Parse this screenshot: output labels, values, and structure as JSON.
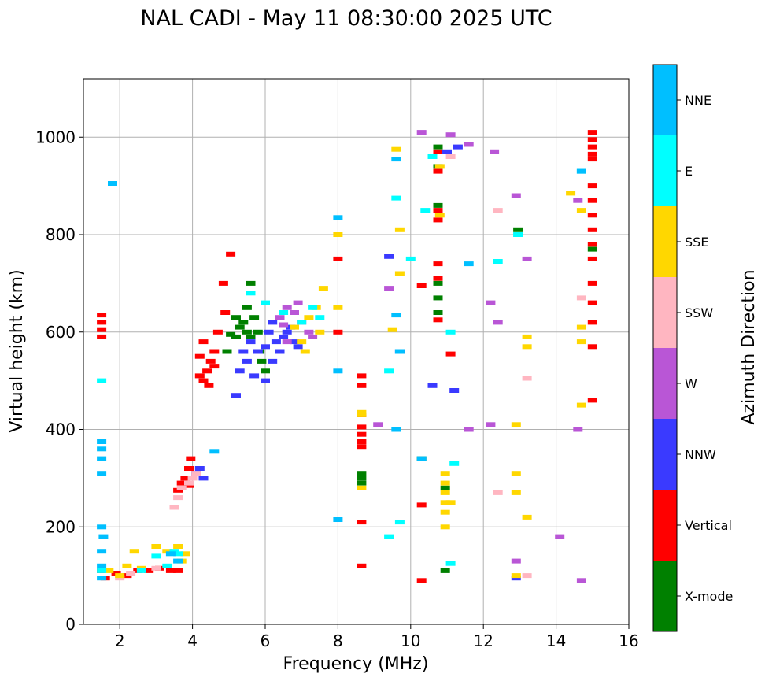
{
  "chart_data": {
    "type": "scatter",
    "title": "NAL CADI - May 11 08:30:00 2025 UTC",
    "xlabel": "Frequency (MHz)",
    "ylabel": "Virtual height (km)",
    "xlim": [
      1,
      16
    ],
    "ylim": [
      0,
      1120
    ],
    "xticks": [
      2,
      4,
      6,
      8,
      10,
      12,
      14,
      16
    ],
    "yticks": [
      0,
      200,
      400,
      600,
      800,
      1000
    ],
    "grid": true,
    "colorbar": {
      "label": "Azimuth Direction",
      "categories": [
        {
          "name": "X-mode",
          "color": "#008000"
        },
        {
          "name": "Vertical",
          "color": "#ff0000"
        },
        {
          "name": "NNW",
          "color": "#3a3aff"
        },
        {
          "name": "W",
          "color": "#b956d6"
        },
        {
          "name": "SSW",
          "color": "#ffb6c1"
        },
        {
          "name": "SSE",
          "color": "#ffd700"
        },
        {
          "name": "E",
          "color": "#00ffff"
        },
        {
          "name": "NNE",
          "color": "#00bfff"
        }
      ]
    },
    "series": [
      {
        "name": "X-mode",
        "points": [
          [
            5.05,
            595
          ],
          [
            5.2,
            590
          ],
          [
            5.3,
            610
          ],
          [
            5.4,
            620
          ],
          [
            5.5,
            600
          ],
          [
            5.6,
            590
          ],
          [
            5.7,
            630
          ],
          [
            5.5,
            650
          ],
          [
            5.6,
            700
          ],
          [
            5.8,
            600
          ],
          [
            5.85,
            560
          ],
          [
            6.0,
            520
          ],
          [
            5.9,
            540
          ],
          [
            5.2,
            630
          ],
          [
            4.95,
            560
          ],
          [
            10.75,
            980
          ],
          [
            10.75,
            940
          ],
          [
            10.75,
            860
          ],
          [
            10.75,
            700
          ],
          [
            10.75,
            670
          ],
          [
            10.75,
            640
          ],
          [
            8.65,
            310
          ],
          [
            8.65,
            300
          ],
          [
            8.65,
            290
          ],
          [
            10.3,
            340
          ],
          [
            10.95,
            280
          ],
          [
            10.95,
            110
          ],
          [
            15.0,
            770
          ],
          [
            12.95,
            810
          ]
        ]
      },
      {
        "name": "Vertical",
        "points": [
          [
            1.5,
            635
          ],
          [
            1.5,
            620
          ],
          [
            1.5,
            605
          ],
          [
            1.5,
            590
          ],
          [
            1.5,
            110
          ],
          [
            1.6,
            95
          ],
          [
            1.9,
            105
          ],
          [
            2.2,
            100
          ],
          [
            2.5,
            110
          ],
          [
            2.8,
            110
          ],
          [
            3.1,
            115
          ],
          [
            3.4,
            110
          ],
          [
            3.6,
            110
          ],
          [
            3.6,
            275
          ],
          [
            3.7,
            290
          ],
          [
            3.8,
            300
          ],
          [
            3.9,
            320
          ],
          [
            3.95,
            340
          ],
          [
            3.9,
            285
          ],
          [
            4.3,
            500
          ],
          [
            4.4,
            520
          ],
          [
            4.5,
            540
          ],
          [
            4.2,
            550
          ],
          [
            4.6,
            560
          ],
          [
            4.3,
            580
          ],
          [
            4.45,
            490
          ],
          [
            4.7,
            600
          ],
          [
            4.9,
            640
          ],
          [
            4.85,
            700
          ],
          [
            5.05,
            760
          ],
          [
            4.2,
            510
          ],
          [
            4.6,
            530
          ],
          [
            8.65,
            510
          ],
          [
            8.65,
            490
          ],
          [
            8.65,
            430
          ],
          [
            8.65,
            405
          ],
          [
            8.65,
            390
          ],
          [
            8.65,
            375
          ],
          [
            8.65,
            365
          ],
          [
            8.65,
            210
          ],
          [
            8.65,
            120
          ],
          [
            10.75,
            970
          ],
          [
            10.75,
            930
          ],
          [
            10.75,
            850
          ],
          [
            10.75,
            830
          ],
          [
            10.75,
            740
          ],
          [
            10.75,
            710
          ],
          [
            10.75,
            625
          ],
          [
            10.3,
            695
          ],
          [
            11.1,
            555
          ],
          [
            10.3,
            90
          ],
          [
            10.3,
            245
          ],
          [
            15.0,
            1010
          ],
          [
            15.0,
            995
          ],
          [
            15.0,
            980
          ],
          [
            15.0,
            965
          ],
          [
            15.0,
            955
          ],
          [
            15.0,
            900
          ],
          [
            15.0,
            870
          ],
          [
            15.0,
            840
          ],
          [
            15.0,
            810
          ],
          [
            15.0,
            780
          ],
          [
            15.0,
            750
          ],
          [
            15.0,
            700
          ],
          [
            15.0,
            660
          ],
          [
            15.0,
            620
          ],
          [
            15.0,
            570
          ],
          [
            15.0,
            460
          ],
          [
            8.0,
            600
          ],
          [
            8.0,
            750
          ]
        ]
      },
      {
        "name": "NNW",
        "points": [
          [
            5.2,
            470
          ],
          [
            5.3,
            520
          ],
          [
            5.4,
            560
          ],
          [
            5.5,
            540
          ],
          [
            5.6,
            580
          ],
          [
            5.7,
            510
          ],
          [
            5.8,
            560
          ],
          [
            6.0,
            570
          ],
          [
            6.1,
            600
          ],
          [
            6.2,
            620
          ],
          [
            6.3,
            580
          ],
          [
            6.4,
            560
          ],
          [
            6.5,
            590
          ],
          [
            6.6,
            600
          ],
          [
            6.7,
            610
          ],
          [
            6.8,
            580
          ],
          [
            6.9,
            570
          ],
          [
            6.2,
            540
          ],
          [
            6.0,
            500
          ],
          [
            4.1,
            310
          ],
          [
            4.2,
            320
          ],
          [
            4.3,
            300
          ],
          [
            9.4,
            755
          ],
          [
            9.7,
            560
          ],
          [
            10.6,
            490
          ],
          [
            11.2,
            480
          ],
          [
            11.0,
            970
          ],
          [
            11.3,
            980
          ],
          [
            12.9,
            95
          ]
        ]
      },
      {
        "name": "W",
        "points": [
          [
            6.5,
            615
          ],
          [
            6.6,
            580
          ],
          [
            6.8,
            640
          ],
          [
            7.0,
            620
          ],
          [
            7.2,
            600
          ],
          [
            7.3,
            590
          ],
          [
            6.9,
            660
          ],
          [
            6.6,
            650
          ],
          [
            6.4,
            630
          ],
          [
            9.1,
            410
          ],
          [
            9.4,
            690
          ],
          [
            10.3,
            1010
          ],
          [
            11.1,
            1005
          ],
          [
            11.6,
            985
          ],
          [
            12.3,
            970
          ],
          [
            12.9,
            880
          ],
          [
            13.2,
            750
          ],
          [
            12.4,
            620
          ],
          [
            12.2,
            660
          ],
          [
            12.9,
            130
          ],
          [
            14.1,
            180
          ],
          [
            14.6,
            870
          ],
          [
            14.6,
            400
          ],
          [
            14.7,
            90
          ],
          [
            11.6,
            400
          ],
          [
            12.2,
            410
          ]
        ]
      },
      {
        "name": "SSW",
        "points": [
          [
            3.5,
            240
          ],
          [
            3.6,
            260
          ],
          [
            3.7,
            280
          ],
          [
            3.9,
            290
          ],
          [
            4.0,
            300
          ],
          [
            4.1,
            310
          ],
          [
            2.0,
            95
          ],
          [
            2.3,
            105
          ],
          [
            3.0,
            115
          ],
          [
            12.4,
            850
          ],
          [
            12.95,
            800
          ],
          [
            11.1,
            960
          ],
          [
            13.2,
            100
          ],
          [
            12.4,
            270
          ],
          [
            13.2,
            505
          ],
          [
            14.7,
            670
          ]
        ]
      },
      {
        "name": "SSE",
        "points": [
          [
            1.7,
            110
          ],
          [
            2.0,
            100
          ],
          [
            2.2,
            120
          ],
          [
            2.6,
            115
          ],
          [
            3.0,
            160
          ],
          [
            3.3,
            150
          ],
          [
            3.6,
            160
          ],
          [
            3.8,
            145
          ],
          [
            3.7,
            130
          ],
          [
            2.4,
            150
          ],
          [
            6.8,
            610
          ],
          [
            7.0,
            580
          ],
          [
            7.2,
            630
          ],
          [
            7.4,
            650
          ],
          [
            7.6,
            690
          ],
          [
            7.1,
            560
          ],
          [
            7.5,
            600
          ],
          [
            8.65,
            280
          ],
          [
            8.65,
            435
          ],
          [
            8.65,
            430
          ],
          [
            9.5,
            605
          ],
          [
            9.7,
            720
          ],
          [
            9.7,
            810
          ],
          [
            9.6,
            975
          ],
          [
            10.8,
            840
          ],
          [
            10.8,
            940
          ],
          [
            10.95,
            310
          ],
          [
            10.95,
            290
          ],
          [
            10.95,
            270
          ],
          [
            10.95,
            250
          ],
          [
            10.95,
            230
          ],
          [
            10.95,
            200
          ],
          [
            11.1,
            250
          ],
          [
            12.9,
            410
          ],
          [
            12.9,
            270
          ],
          [
            12.9,
            310
          ],
          [
            13.2,
            590
          ],
          [
            13.2,
            570
          ],
          [
            13.2,
            220
          ],
          [
            14.4,
            885
          ],
          [
            14.7,
            850
          ],
          [
            14.7,
            610
          ],
          [
            14.7,
            580
          ],
          [
            14.7,
            450
          ],
          [
            12.9,
            100
          ],
          [
            8.0,
            800
          ],
          [
            8.0,
            650
          ]
        ]
      },
      {
        "name": "E",
        "points": [
          [
            1.5,
            500
          ],
          [
            1.5,
            110
          ],
          [
            2.6,
            110
          ],
          [
            3.0,
            140
          ],
          [
            3.3,
            120
          ],
          [
            3.5,
            150
          ],
          [
            3.6,
            145
          ],
          [
            5.6,
            680
          ],
          [
            6.0,
            660
          ],
          [
            6.5,
            640
          ],
          [
            7.0,
            620
          ],
          [
            7.3,
            650
          ],
          [
            7.5,
            630
          ],
          [
            9.4,
            520
          ],
          [
            9.6,
            875
          ],
          [
            10.4,
            850
          ],
          [
            11.1,
            600
          ],
          [
            10.6,
            960
          ],
          [
            11.1,
            125
          ],
          [
            11.2,
            330
          ],
          [
            12.4,
            745
          ],
          [
            12.95,
            800
          ],
          [
            14.7,
            930
          ],
          [
            9.4,
            180
          ],
          [
            9.7,
            210
          ],
          [
            10.0,
            750
          ]
        ]
      },
      {
        "name": "NNE",
        "points": [
          [
            1.5,
            375
          ],
          [
            1.5,
            360
          ],
          [
            1.5,
            340
          ],
          [
            1.5,
            310
          ],
          [
            1.5,
            200
          ],
          [
            1.55,
            180
          ],
          [
            1.5,
            150
          ],
          [
            1.5,
            120
          ],
          [
            1.5,
            95
          ],
          [
            1.8,
            905
          ],
          [
            3.4,
            145
          ],
          [
            3.6,
            130
          ],
          [
            4.6,
            355
          ],
          [
            8.0,
            520
          ],
          [
            8.0,
            835
          ],
          [
            9.6,
            400
          ],
          [
            9.6,
            635
          ],
          [
            9.6,
            955
          ],
          [
            10.3,
            340
          ],
          [
            11.6,
            740
          ],
          [
            14.7,
            930
          ],
          [
            8.0,
            215
          ],
          [
            9.7,
            560
          ]
        ]
      }
    ]
  }
}
